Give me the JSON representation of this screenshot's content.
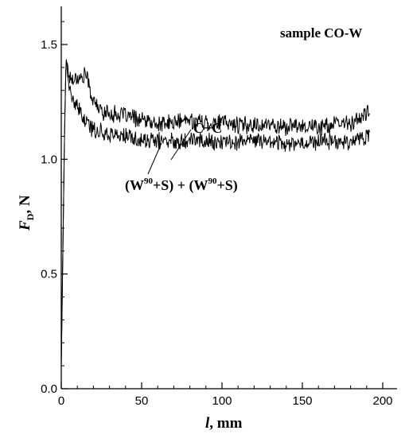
{
  "chart_data": {
    "type": "line",
    "title": "sample CO-W",
    "xlabel": {
      "var": "l",
      "unit": ", mm"
    },
    "ylabel": {
      "var": "F",
      "sub": "D",
      "unit": ", N"
    },
    "xlim": [
      0,
      200
    ],
    "ylim": [
      0,
      1.65
    ],
    "x_ticks": [
      0,
      50,
      100,
      150,
      200
    ],
    "x_tick_labels": [
      "0",
      "50",
      "100",
      "150",
      "200"
    ],
    "y_ticks": [
      0,
      0.5,
      1.0,
      1.5
    ],
    "y_tick_labels": [
      "0.0",
      "0.5",
      "1.0",
      "1.5"
    ],
    "grid": false,
    "legend": "none",
    "series": [
      {
        "name": "C+C",
        "color": "#000000",
        "x": [
          0,
          1,
          2,
          3,
          4,
          5,
          7,
          10,
          13,
          15,
          20,
          25,
          30,
          40,
          50,
          60,
          70,
          80,
          90,
          100,
          110,
          120,
          130,
          140,
          150,
          160,
          170,
          180,
          185,
          190,
          192
        ],
        "y": [
          0.1,
          0.6,
          1.1,
          1.45,
          1.4,
          1.36,
          1.35,
          1.36,
          1.35,
          1.38,
          1.25,
          1.21,
          1.2,
          1.19,
          1.17,
          1.15,
          1.16,
          1.17,
          1.16,
          1.16,
          1.15,
          1.15,
          1.15,
          1.14,
          1.15,
          1.14,
          1.15,
          1.16,
          1.17,
          1.2,
          1.21
        ]
      },
      {
        "name": "(W90+S) + (W90+S)",
        "color": "#000000",
        "x": [
          0,
          1,
          2,
          3,
          4,
          5,
          7,
          10,
          13,
          15,
          20,
          25,
          30,
          40,
          50,
          60,
          70,
          80,
          90,
          100,
          110,
          120,
          130,
          140,
          150,
          160,
          170,
          180,
          185,
          190,
          192
        ],
        "y": [
          0.1,
          0.6,
          1.1,
          1.45,
          1.38,
          1.3,
          1.26,
          1.22,
          1.19,
          1.16,
          1.13,
          1.12,
          1.11,
          1.1,
          1.08,
          1.08,
          1.08,
          1.09,
          1.08,
          1.07,
          1.08,
          1.08,
          1.08,
          1.07,
          1.07,
          1.08,
          1.08,
          1.08,
          1.09,
          1.1,
          1.1
        ]
      }
    ],
    "annotations": {
      "cc": {
        "text": "C+C"
      },
      "w90": {
        "open": "(W",
        "sup": "90",
        "mid": "+S) + (W",
        "close": "+S)"
      }
    }
  }
}
